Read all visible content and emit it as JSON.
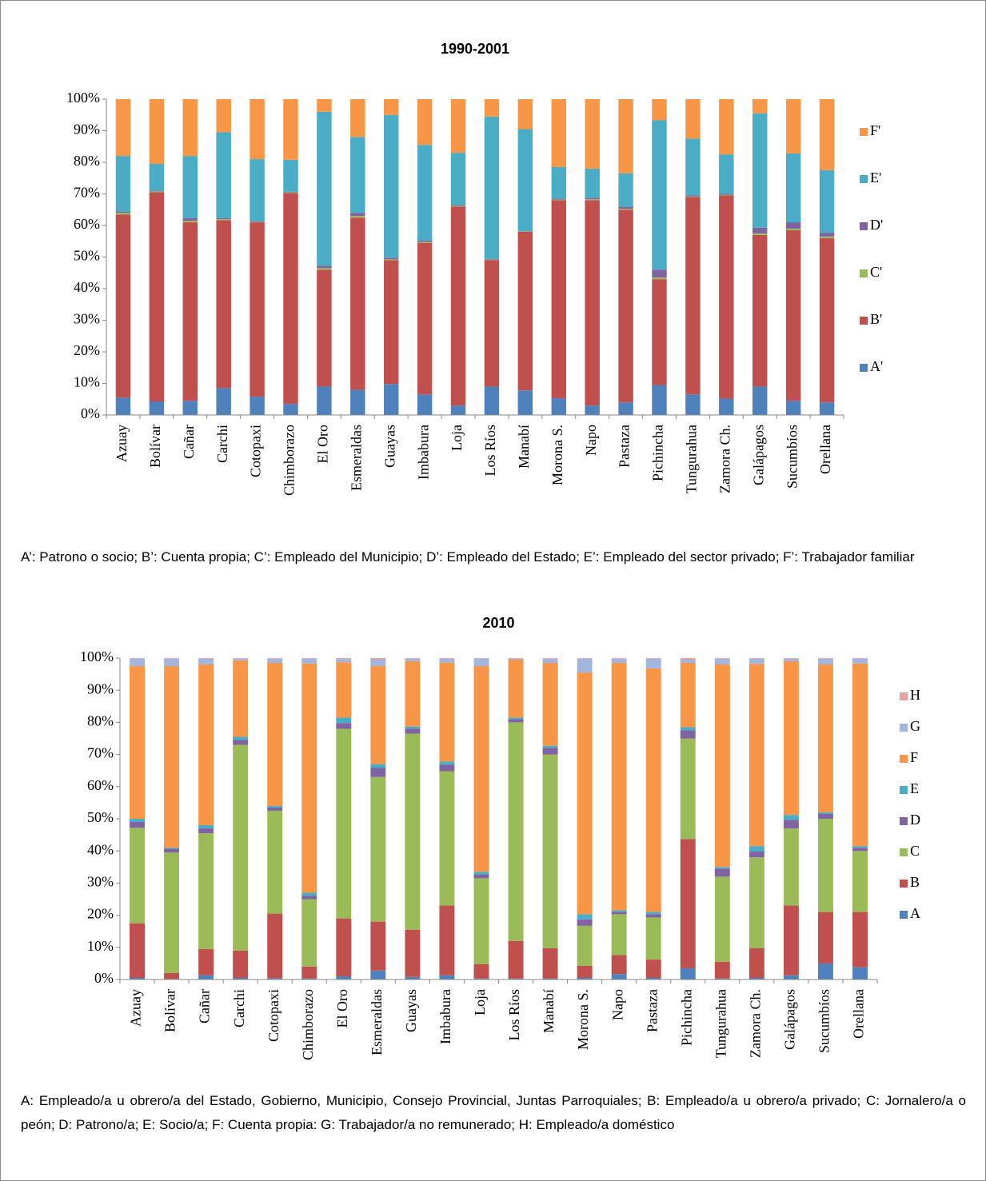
{
  "chart_data": [
    {
      "type": "stacked_bar",
      "title": "1990-2001",
      "categories": [
        "Azuay",
        "Bolívar",
        "Cañar",
        "Carchi",
        "Cotopaxi",
        "Chimborazo",
        "El Oro",
        "Esmeraldas",
        "Guayas",
        "Imbabura",
        "Loja",
        "Los Ríos",
        "Manabí",
        "Morona S.",
        "Napo",
        "Pastaza",
        "Pichincha",
        "Tungurahua",
        "Zamora Ch.",
        "Galápagos",
        "Sucumbíos",
        "Orellana"
      ],
      "series": [
        {
          "name": "A'",
          "color": "#4f81bd",
          "values": [
            5.5,
            4.3,
            4.5,
            8.5,
            5.8,
            3.5,
            9,
            8,
            9.8,
            6.5,
            3,
            9,
            7.8,
            5.3,
            3,
            4,
            9.5,
            6.5,
            5.2,
            9,
            4.5,
            4
          ]
        },
        {
          "name": "B'",
          "color": "#c0504d",
          "values": [
            58,
            66.2,
            56.5,
            53.2,
            55.2,
            66.8,
            37,
            54.5,
            39.2,
            48,
            63,
            40,
            50.2,
            62.7,
            65,
            61,
            33.5,
            62.5,
            64.3,
            48,
            54,
            52
          ]
        },
        {
          "name": "C'",
          "color": "#9bbb59",
          "values": [
            0.5,
            0.3,
            0.5,
            0.3,
            0.2,
            0.2,
            0.5,
            0.5,
            0.3,
            0.3,
            0.2,
            0.2,
            0.1,
            0.2,
            0.3,
            0.3,
            0.5,
            0.2,
            0.2,
            0.5,
            0.5,
            0.5
          ]
        },
        {
          "name": "D'",
          "color": "#8064a2",
          "values": [
            0.3,
            0.2,
            0.8,
            0.3,
            0.2,
            0.2,
            0.7,
            1,
            0.5,
            0.4,
            0.3,
            0.2,
            0.1,
            0.3,
            0.4,
            0.7,
            2.5,
            0.3,
            0.3,
            1.8,
            2,
            1.2
          ]
        },
        {
          "name": "E'",
          "color": "#4bacc6",
          "values": [
            17.7,
            8.5,
            19.7,
            27.2,
            19.6,
            10.1,
            48.8,
            24,
            45.2,
            30.3,
            16.5,
            45.1,
            32.3,
            10,
            9.3,
            10.5,
            47.3,
            18,
            12.5,
            36.2,
            21.8,
            19.8
          ]
        },
        {
          "name": "F'",
          "color": "#f79646",
          "values": [
            18,
            20.5,
            18,
            10.5,
            19,
            19.2,
            4,
            12,
            5,
            14.5,
            17,
            5.5,
            9.5,
            21.5,
            22,
            23.5,
            6.7,
            12.5,
            17.5,
            4.5,
            17.2,
            22.5
          ]
        }
      ],
      "ylim": [
        0,
        100
      ],
      "yticks": [
        {
          "value": 0,
          "label": "0%"
        },
        {
          "value": 10,
          "label": "10%"
        },
        {
          "value": 20,
          "label": "20%"
        },
        {
          "value": 30,
          "label": "30%"
        },
        {
          "value": 40,
          "label": "40%"
        },
        {
          "value": 50,
          "label": "50%"
        },
        {
          "value": 60,
          "label": "60%"
        },
        {
          "value": 70,
          "label": "70%"
        },
        {
          "value": 80,
          "label": "80%"
        },
        {
          "value": 90,
          "label": "90%"
        },
        {
          "value": 100,
          "label": "100%"
        }
      ],
      "legend": "right",
      "note": "A’: Patrono o socio; B’: Cuenta propia; C’: Empleado del Municipio; D’: Empleado del Estado; E’: Empleado del sector privado; F’: Trabajador familiar"
    },
    {
      "type": "stacked_bar",
      "title": "2010",
      "categories": [
        "Azuay",
        "Bolívar",
        "Cañar",
        "Carchi",
        "Cotopaxi",
        "Chimborazo",
        "El Oro",
        "Esmeraldas",
        "Guayas",
        "Imbabura",
        "Loja",
        "Los Ríos",
        "Manabí",
        "Morona S.",
        "Napo",
        "Pastaza",
        "Pichincha",
        "Tungurahua",
        "Zamora Ch.",
        "Galápagos",
        "Sucumbíos",
        "Orellana"
      ],
      "series": [
        {
          "name": "A",
          "color": "#4f81bd",
          "values": [
            0.5,
            0.2,
            1.3,
            0.5,
            0.4,
            0.3,
            1,
            2.8,
            0.8,
            1.3,
            0.3,
            0.3,
            0.3,
            0.5,
            1.7,
            0.5,
            3.5,
            0.3,
            0.5,
            1.3,
            5,
            3.8
          ]
        },
        {
          "name": "B",
          "color": "#c0504d",
          "values": [
            17,
            1.8,
            8.2,
            8.5,
            20.1,
            3.7,
            18,
            15.2,
            14.7,
            21.7,
            4.5,
            11.7,
            9.4,
            3.8,
            5.9,
            5.7,
            40.2,
            5.2,
            9.2,
            21.7,
            16,
            17.2
          ]
        },
        {
          "name": "C",
          "color": "#9bbb59",
          "values": [
            29.7,
            37.5,
            36,
            64,
            32,
            21,
            59,
            45,
            61,
            41.8,
            26.7,
            68,
            60.3,
            12.4,
            12.7,
            13.1,
            31.3,
            26.5,
            28.3,
            24,
            29,
            19
          ]
        },
        {
          "name": "D",
          "color": "#8064a2",
          "values": [
            1.8,
            1.2,
            1.5,
            1.5,
            1,
            1,
            1.8,
            2.8,
            1.5,
            2,
            1.2,
            1,
            2,
            2,
            0.7,
            1,
            2.5,
            2.5,
            1.8,
            2.7,
            1.5,
            1
          ]
        },
        {
          "name": "E",
          "color": "#4bacc6",
          "values": [
            1,
            0.3,
            1,
            1,
            0.5,
            1,
            1.7,
            1.2,
            0.7,
            1,
            0.8,
            0.5,
            0.7,
            1.6,
            0.5,
            0.7,
            1,
            0.5,
            1.7,
            1.5,
            0.5,
            0.5
          ]
        },
        {
          "name": "F",
          "color": "#f79646",
          "values": [
            47.5,
            56.5,
            50,
            23.8,
            44.5,
            71.3,
            17.2,
            30.5,
            20.3,
            30.8,
            64,
            18,
            25.8,
            75.2,
            77,
            75.8,
            20,
            63,
            56.7,
            47.8,
            46,
            56.8
          ]
        },
        {
          "name": "G",
          "color": "#a3b6de",
          "values": [
            2.3,
            2.3,
            1.8,
            0.5,
            1.3,
            1.5,
            1,
            2,
            0.8,
            1.2,
            2.3,
            0.3,
            1.3,
            4.3,
            1.3,
            3,
            1,
            1.8,
            1.6,
            0.8,
            1.8,
            1.5
          ]
        },
        {
          "name": "H",
          "color": "#e6a3a1",
          "values": [
            0.2,
            0.2,
            0.2,
            0.2,
            0.2,
            0.2,
            0.3,
            0.5,
            0.2,
            0.2,
            0.2,
            0.2,
            0.2,
            0.2,
            0.2,
            0.2,
            0.5,
            0.2,
            0.2,
            0.2,
            0.2,
            0.2
          ]
        }
      ],
      "ylim": [
        0,
        100
      ],
      "yticks": [
        {
          "value": 0,
          "label": "0%"
        },
        {
          "value": 10,
          "label": "10%"
        },
        {
          "value": 20,
          "label": "20%"
        },
        {
          "value": 30,
          "label": "30%"
        },
        {
          "value": 40,
          "label": "40%"
        },
        {
          "value": 50,
          "label": "50%"
        },
        {
          "value": 60,
          "label": "60%"
        },
        {
          "value": 70,
          "label": "70%"
        },
        {
          "value": 80,
          "label": "80%"
        },
        {
          "value": 90,
          "label": "90%"
        },
        {
          "value": 100,
          "label": "100%"
        }
      ],
      "legend": "right",
      "note": "A: Empleado/a u obrero/a del Estado, Gobierno, Municipio, Consejo Provincial, Juntas Parroquiales; B: Empleado/a u obrero/a privado; C: Jornalero/a o peón; D: Patrono/a; E: Socio/a; F: Cuenta propia: G: Trabajador/a no remunerado; H: Empleado/a doméstico"
    }
  ]
}
